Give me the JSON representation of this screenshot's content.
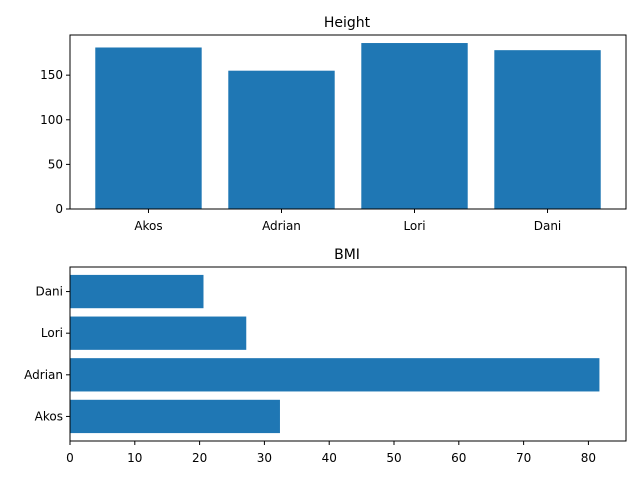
{
  "chart_data": [
    {
      "type": "bar",
      "orientation": "vertical",
      "title": "Height",
      "categories": [
        "Akos",
        "Adrian",
        "Lori",
        "Dani"
      ],
      "values": [
        181,
        155,
        186,
        178
      ],
      "ylim": [
        0,
        195
      ],
      "yticks": [
        0,
        50,
        100,
        150
      ],
      "color": "#1f77b4",
      "grid": false
    },
    {
      "type": "bar",
      "orientation": "horizontal",
      "title": "BMI",
      "categories": [
        "Akos",
        "Adrian",
        "Lori",
        "Dani"
      ],
      "values": [
        32.4,
        81.7,
        27.2,
        20.6
      ],
      "xlim": [
        0,
        85.8
      ],
      "xticks": [
        0,
        10,
        20,
        30,
        40,
        50,
        60,
        70,
        80
      ],
      "color": "#1f77b4",
      "grid": false
    }
  ]
}
